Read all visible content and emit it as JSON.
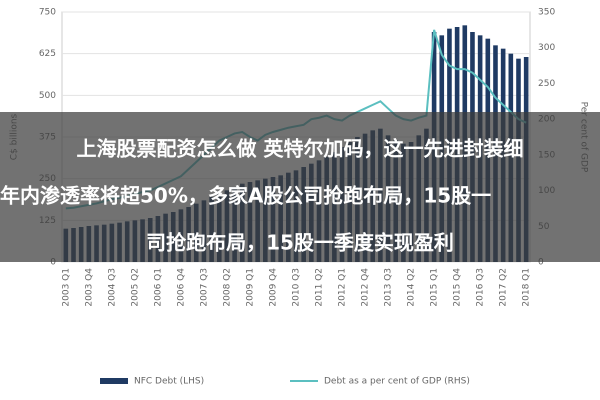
{
  "chart_data": {
    "type": "bar_line",
    "categories": [
      "2003 Q1",
      null,
      null,
      "2003 Q4",
      null,
      null,
      "2004 Q3",
      null,
      null,
      "2005 Q2",
      null,
      null,
      "2006 Q1",
      null,
      null,
      "2006 Q4",
      null,
      null,
      "2007 Q3",
      null,
      null,
      "2008 Q2",
      null,
      null,
      "2009 Q1",
      null,
      null,
      "2009 Q4",
      null,
      null,
      "2010 Q3",
      null,
      null,
      "2011 Q2",
      null,
      null,
      "2012 Q1",
      null,
      null,
      "2012 Q4",
      null,
      null,
      "2013 Q3",
      null,
      null,
      "2014 Q2",
      null,
      null,
      "2015 Q1",
      null,
      null,
      "2015 Q4",
      null,
      null,
      "2016 Q3",
      null,
      null,
      "2017 Q2",
      null,
      null,
      "2018 Q1"
    ],
    "series": [
      {
        "name": "NFC Debt (LHS)",
        "color": "#1f3a63",
        "kind": "bar",
        "values": [
          100,
          102,
          105,
          108,
          110,
          112,
          115,
          118,
          122,
          125,
          128,
          132,
          138,
          145,
          150,
          158,
          165,
          175,
          185,
          195,
          205,
          215,
          225,
          235,
          240,
          245,
          250,
          255,
          260,
          268,
          275,
          285,
          295,
          305,
          315,
          330,
          345,
          360,
          375,
          385,
          395,
          400,
          380,
          365,
          355,
          360,
          380,
          400,
          690,
          680,
          700,
          705,
          710,
          690,
          680,
          670,
          650,
          640,
          625,
          610,
          615
        ]
      },
      {
        "name": "Debt as a per cent of GDP (RHS)",
        "color": "#5bbfc0",
        "kind": "line",
        "axis": "y2",
        "values": [
          75,
          76,
          78,
          80,
          82,
          85,
          88,
          90,
          92,
          95,
          98,
          100,
          105,
          110,
          115,
          120,
          130,
          140,
          150,
          160,
          170,
          175,
          180,
          182,
          175,
          170,
          178,
          182,
          185,
          188,
          190,
          192,
          200,
          202,
          205,
          200,
          198,
          205,
          210,
          215,
          220,
          225,
          215,
          205,
          200,
          198,
          202,
          205,
          325,
          290,
          275,
          270,
          270,
          265,
          255,
          245,
          230,
          220,
          210,
          200,
          195
        ]
      }
    ],
    "ylabel": "C$ billions",
    "y2label": "Per cent of GDP",
    "ylim": [
      0,
      750
    ],
    "yticks": [
      0,
      125,
      250,
      375,
      500,
      625,
      750
    ],
    "y2lim": [
      0,
      350
    ],
    "y2ticks": [
      0,
      50,
      100,
      150,
      200,
      250,
      300,
      350
    ],
    "grid": true
  },
  "overlay_text": [
    "上海股票配资怎么做 英特尔加码，这一先进封装细",
    "年内渗透率将超50%，多家A股公司抢跑布局，15股一",
    "司抢跑布局，15股一季度实现盈利"
  ]
}
